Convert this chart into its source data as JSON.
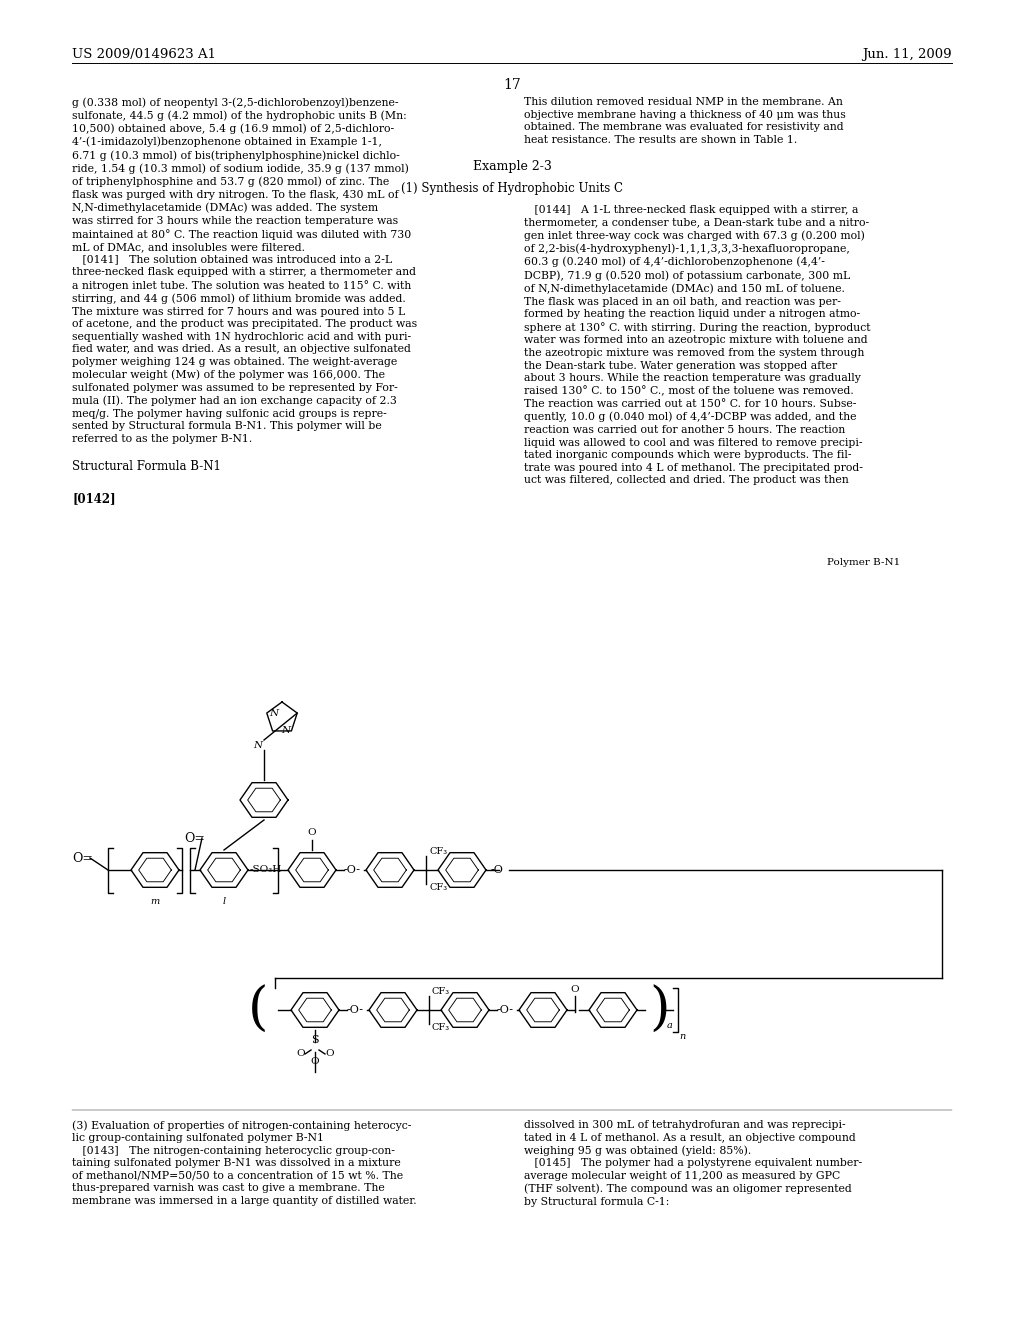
{
  "page_header_left": "US 2009/0149623 A1",
  "page_header_right": "Jun. 11, 2009",
  "page_number": "17",
  "label_polymer": "Polymer B-N1",
  "background_color": "#ffffff",
  "text_color": "#000000",
  "left_col_text": "g (0.338 mol) of neopentyl 3-(2,5-dichlorobenzoyl)benzene-\nsulfonate, 44.5 g (4.2 mmol) of the hydrophobic units B (Mn:\n10,500) obtained above, 5.4 g (16.9 mmol) of 2,5-dichloro-\n4’-(1-imidazolyl)benzophenone obtained in Example 1-1,\n6.71 g (10.3 mmol) of bis(triphenylphosphine)nickel dichlo-\nride, 1.54 g (10.3 mmol) of sodium iodide, 35.9 g (137 mmol)\nof triphenylphosphine and 53.7 g (820 mmol) of zinc. The\nflask was purged with dry nitrogen. To the flask, 430 mL of\nN,N-dimethylacetamide (DMAc) was added. The system\nwas stirred for 3 hours while the reaction temperature was\nmaintained at 80° C. The reaction liquid was diluted with 730\nmL of DMAc, and insolubles were filtered.\n   [0141]   The solution obtained was introduced into a 2-L\nthree-necked flask equipped with a stirrer, a thermometer and\na nitrogen inlet tube. The solution was heated to 115° C. with\nstirring, and 44 g (506 mmol) of lithium bromide was added.\nThe mixture was stirred for 7 hours and was poured into 5 L\nof acetone, and the product was precipitated. The product was\nsequentially washed with 1N hydrochloric acid and with puri-\nfied water, and was dried. As a result, an objective sulfonated\npolymer weighing 124 g was obtained. The weight-average\nmolecular weight (Mw) of the polymer was 166,000. The\nsulfonated polymer was assumed to be represented by For-\nmula (II). The polymer had an ion exchange capacity of 2.3\nmeq/g. The polymer having sulfonic acid groups is repre-\nsented by Structural formula B-N1. This polymer will be\nreferred to as the polymer B-N1.",
  "struct_label": "Structural Formula B-N1",
  "para_label": "[0142]",
  "right_col_text1": "This dilution removed residual NMP in the membrane. An\nobjective membrane having a thickness of 40 μm was thus\nobtained. The membrane was evaluated for resistivity and\nheat resistance. The results are shown in Table 1.",
  "example_heading": "Example 2-3",
  "synthesis_heading": "(1) Synthesis of Hydrophobic Units C",
  "right_col_text2": "   [0144]   A 1-L three-necked flask equipped with a stirrer, a\nthermometer, a condenser tube, a Dean-stark tube and a nitro-\ngen inlet three-way cock was charged with 67.3 g (0.200 mol)\nof 2,2-bis(4-hydroxyphenyl)-1,1,1,3,3,3-hexafluoropropane,\n60.3 g (0.240 mol) of 4,4’-dichlorobenzophenone (4,4’-\nDCBP), 71.9 g (0.520 mol) of potassium carbonate, 300 mL\nof N,N-dimethylacetamide (DMAc) and 150 mL of toluene.\nThe flask was placed in an oil bath, and reaction was per-\nformed by heating the reaction liquid under a nitrogen atmo-\nsphere at 130° C. with stirring. During the reaction, byproduct\nwater was formed into an azeotropic mixture with toluene and\nthe azeotropic mixture was removed from the system through\nthe Dean-stark tube. Water generation was stopped after\nabout 3 hours. While the reaction temperature was gradually\nraised 130° C. to 150° C., most of the toluene was removed.\nThe reaction was carried out at 150° C. for 10 hours. Subse-\nquently, 10.0 g (0.040 mol) of 4,4’-DCBP was added, and the\nreaction was carried out for another 5 hours. The reaction\nliquid was allowed to cool and was filtered to remove precipi-\ntated inorganic compounds which were byproducts. The fil-\ntrate was poured into 4 L of methanol. The precipitated prod-\nuct was filtered, collected and dried. The product was then",
  "footer_left_text": "(3) Evaluation of properties of nitrogen-containing heterocyc-\nlic group-containing sulfonated polymer B-N1\n   [0143]   The nitrogen-containing heterocyclic group-con-\ntaining sulfonated polymer B-N1 was dissolved in a mixture\nof methanol/NMP=50/50 to a concentration of 15 wt %. The\nthus-prepared varnish was cast to give a membrane. The\nmembrane was immersed in a large quantity of distilled water.",
  "footer_right_text": "dissolved in 300 mL of tetrahydrofuran and was reprecipi-\ntated in 4 L of methanol. As a result, an objective compound\nweighing 95 g was obtained (yield: 85%).\n   [0145]   The polymer had a polystyrene equivalent number-\naverage molecular weight of 11,200 as measured by GPC\n(THF solvent). The compound was an oligomer represented\nby Structural formula C-1:"
}
